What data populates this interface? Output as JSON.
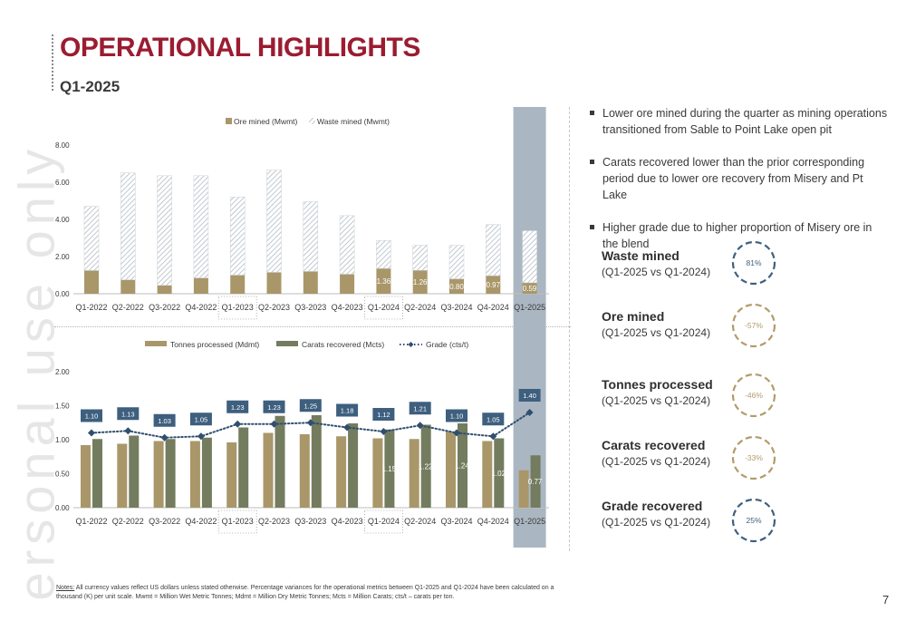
{
  "header": {
    "title": "OPERATIONAL HIGHLIGHTS",
    "subtitle": "Q1-2025"
  },
  "watermark": "ersonal use only",
  "colors": {
    "title": "#9b1c31",
    "ore": "#a9976a",
    "waste_hatch": "#a8b2bc",
    "tonnes": "#a9976a",
    "carats": "#737c5f",
    "grade": "#2f4f6f",
    "highlight": "#aab6c2",
    "label_box": "#3e5f7e",
    "ring_blue": "#3e5f7e",
    "ring_gold": "#b39b6a"
  },
  "chart_data": [
    {
      "type": "bar",
      "stacked": true,
      "legend": [
        "Ore mined (Mwmt)",
        "Waste mined (Mwmt)"
      ],
      "categories": [
        "Q1-2022",
        "Q2-2022",
        "Q3-2022",
        "Q4-2022",
        "Q1-2023",
        "Q2-2023",
        "Q3-2023",
        "Q4-2023",
        "Q1-2024",
        "Q2-2024",
        "Q3-2024",
        "Q4-2024",
        "Q1-2025"
      ],
      "series": [
        {
          "name": "Ore mined (Mwmt)",
          "values": [
            1.25,
            0.75,
            0.45,
            0.85,
            1.0,
            1.15,
            1.2,
            1.05,
            1.36,
            1.26,
            0.8,
            0.97,
            0.59
          ]
        },
        {
          "name": "Waste mined (Mwmt)",
          "values": [
            3.45,
            5.75,
            5.9,
            5.5,
            4.2,
            5.5,
            3.75,
            3.15,
            1.5,
            1.35,
            1.8,
            2.75,
            2.8
          ]
        }
      ],
      "data_labels": {
        "indices": [
          8,
          9,
          10,
          11,
          12
        ],
        "texts": [
          "1.36",
          "1.26",
          "0.80",
          "0.97",
          "0.59"
        ]
      },
      "y_ticks": [
        "0.00",
        "2.00",
        "4.00",
        "6.00",
        "8.00"
      ],
      "ylim": [
        0,
        8
      ],
      "highlight_category": "Q1-2025"
    },
    {
      "type": "bar",
      "legend": [
        "Tonnes processed (Mdmt)",
        "Carats recovered (Mcts)",
        "Grade (cts/t)"
      ],
      "categories": [
        "Q1-2022",
        "Q2-2022",
        "Q3-2022",
        "Q4-2022",
        "Q1-2023",
        "Q2-2023",
        "Q3-2023",
        "Q4-2023",
        "Q1-2024",
        "Q2-2024",
        "Q3-2024",
        "Q4-2024",
        "Q1-2025"
      ],
      "series": [
        {
          "name": "Tonnes processed (Mdmt)",
          "values": [
            0.92,
            0.94,
            0.98,
            0.98,
            0.96,
            1.1,
            1.08,
            1.05,
            1.02,
            1.01,
            1.12,
            0.98,
            0.55
          ]
        },
        {
          "name": "Carats recovered (Mcts)",
          "values": [
            1.01,
            1.06,
            1.01,
            1.03,
            1.18,
            1.35,
            1.36,
            1.24,
            1.15,
            1.22,
            1.24,
            1.02,
            0.77
          ]
        },
        {
          "name": "Grade (cts/t)",
          "type": "line",
          "values": [
            1.1,
            1.13,
            1.03,
            1.05,
            1.23,
            1.23,
            1.25,
            1.18,
            1.12,
            1.21,
            1.1,
            1.05,
            1.4
          ]
        }
      ],
      "carat_labels": {
        "indices": [
          8,
          9,
          10,
          11,
          12
        ],
        "texts": [
          "1.15",
          "1.22",
          "1.24",
          "1.02",
          "0.77"
        ]
      },
      "grade_labels": [
        "1.10",
        "1.13",
        "1.03",
        "1.05",
        "1.23",
        "1.23",
        "1.25",
        "1.18",
        "1.12",
        "1.21",
        "1.10",
        "1.05",
        "1.40"
      ],
      "y_ticks": [
        "0.00",
        "0.50",
        "1.00",
        "1.50",
        "2.00"
      ],
      "ylim": [
        0,
        2
      ],
      "highlight_category": "Q1-2025"
    }
  ],
  "bullets": [
    "Lower ore mined during the quarter as mining operations transitioned from Sable to Point Lake open pit",
    "Carats recovered lower than the prior corresponding period due to lower ore recovery from Misery and Pt Lake",
    "Higher grade due to higher proportion of Misery ore in the blend"
  ],
  "metrics": [
    {
      "title": "Waste mined",
      "sub": "(Q1-2025 vs Q1-2024)",
      "value": "81%",
      "color": "#3e5f7e"
    },
    {
      "title": "Ore mined",
      "sub": "(Q1-2025 vs Q1-2024)",
      "value": "-57%",
      "color": "#b39b6a"
    },
    {
      "title": "Tonnes processed",
      "sub": "(Q1-2025 vs Q1-2024)",
      "value": "-46%",
      "color": "#b39b6a"
    },
    {
      "title": "Carats recovered",
      "sub": "(Q1-2025 vs Q1-2024)",
      "value": "-33%",
      "color": "#b39b6a"
    },
    {
      "title": "Grade recovered",
      "sub": "(Q1-2025 vs Q1-2024)",
      "value": "25%",
      "color": "#3e5f7e"
    }
  ],
  "notes": {
    "label": "Notes:",
    "text": " All currency values reflect US dollars unless stated otherwise. Percentage variances for the operational metrics between Q1-2025 and Q1-2024 have been calculated on a thousand (K) per unit scale. Mwmt = Million Wet Metric Tonnes; Mdmt = Million Dry Metric Tonnes; Mcts = Million Carats; cts/t – carats per ton."
  },
  "page_number": "7"
}
